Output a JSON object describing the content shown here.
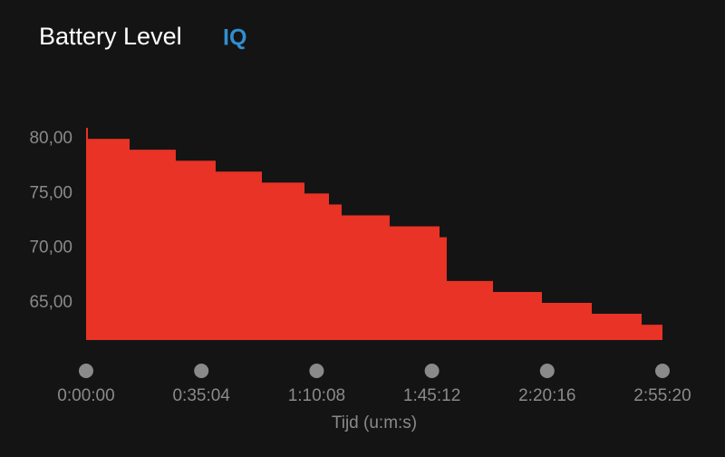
{
  "chart_data": {
    "type": "step-area",
    "title": "Battery Level",
    "logo": "IQ",
    "x_label": "Tijd (u:m:s)",
    "color": "#e83326",
    "x": [
      0,
      33,
      794,
      1637,
      2365,
      3209,
      3986,
      4433,
      4664,
      5541,
      6451,
      6583,
      7427,
      8320,
      9230,
      10140,
      10520
    ],
    "values": [
      81,
      80,
      79,
      78,
      77,
      76,
      75,
      74,
      73,
      72,
      71,
      67,
      66,
      65,
      64,
      63,
      63
    ],
    "xlim": [
      0,
      10520
    ],
    "xticks": [
      {
        "value": 0,
        "label": "0:00:00"
      },
      {
        "value": 2104,
        "label": "0:35:04"
      },
      {
        "value": 4208,
        "label": "1:10:08"
      },
      {
        "value": 6312,
        "label": "1:45:12"
      },
      {
        "value": 8416,
        "label": "2:20:16"
      },
      {
        "value": 10520,
        "label": "2:55:20"
      }
    ],
    "ylim": [
      61.6,
      82
    ],
    "yticks": [
      {
        "value": 65,
        "label": "65,00"
      },
      {
        "value": 70,
        "label": "70,00"
      },
      {
        "value": 75,
        "label": "75,00"
      },
      {
        "value": 80,
        "label": "80,00"
      }
    ]
  }
}
